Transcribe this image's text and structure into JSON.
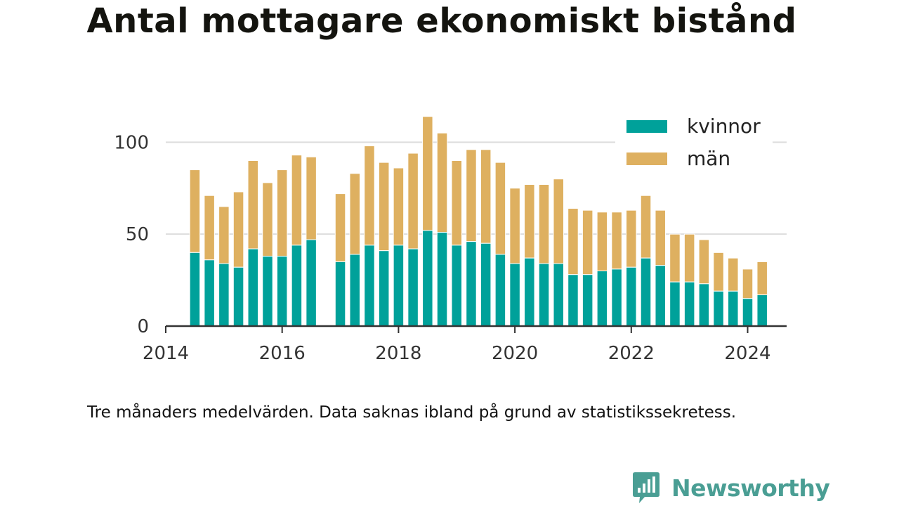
{
  "title": "Antal mottagare ekonomiskt bistånd",
  "note": "Tre månaders medelvärden. Data saknas ibland på grund av statistikssekretess.",
  "brand": {
    "name": "Newsworthy",
    "icon": "bar-chart-bubble-icon"
  },
  "colors": {
    "kvinnor": "#00a19a",
    "man": "#deb060",
    "axis": "#333333",
    "grid": "#dddddd"
  },
  "chart_data": {
    "type": "bar",
    "stacked": true,
    "title": "",
    "xlabel": "",
    "ylabel": "",
    "ylim": [
      0,
      120
    ],
    "yticks": [
      0,
      50,
      100
    ],
    "xlim": [
      2014.0,
      2024.67
    ],
    "xticks": [
      2014,
      2016,
      2018,
      2020,
      2022,
      2024
    ],
    "grid": true,
    "legend": "top-right",
    "x": [
      2014.5,
      2014.75,
      2015.0,
      2015.25,
      2015.5,
      2015.75,
      2016.0,
      2016.25,
      2016.5,
      2017.0,
      2017.25,
      2017.5,
      2017.75,
      2018.0,
      2018.25,
      2018.5,
      2018.75,
      2019.0,
      2019.25,
      2019.5,
      2019.75,
      2020.0,
      2020.25,
      2020.5,
      2020.75,
      2021.0,
      2021.25,
      2021.5,
      2021.75,
      2022.0,
      2022.25,
      2022.5,
      2022.75,
      2023.0,
      2023.25,
      2023.5,
      2023.75,
      2024.0,
      2024.25
    ],
    "series": [
      {
        "name": "kvinnor",
        "values": [
          40,
          36,
          34,
          32,
          42,
          38,
          38,
          44,
          47,
          35,
          39,
          44,
          41,
          44,
          42,
          52,
          51,
          44,
          46,
          45,
          39,
          34,
          37,
          34,
          34,
          28,
          28,
          30,
          31,
          32,
          37,
          33,
          24,
          24,
          23,
          19,
          19,
          15,
          17
        ]
      },
      {
        "name": "män",
        "values": [
          45,
          35,
          31,
          41,
          48,
          40,
          47,
          49,
          45,
          37,
          44,
          54,
          48,
          42,
          52,
          62,
          54,
          46,
          50,
          51,
          50,
          41,
          40,
          43,
          46,
          36,
          35,
          32,
          31,
          31,
          34,
          30,
          26,
          26,
          24,
          21,
          18,
          16,
          18
        ]
      }
    ]
  }
}
